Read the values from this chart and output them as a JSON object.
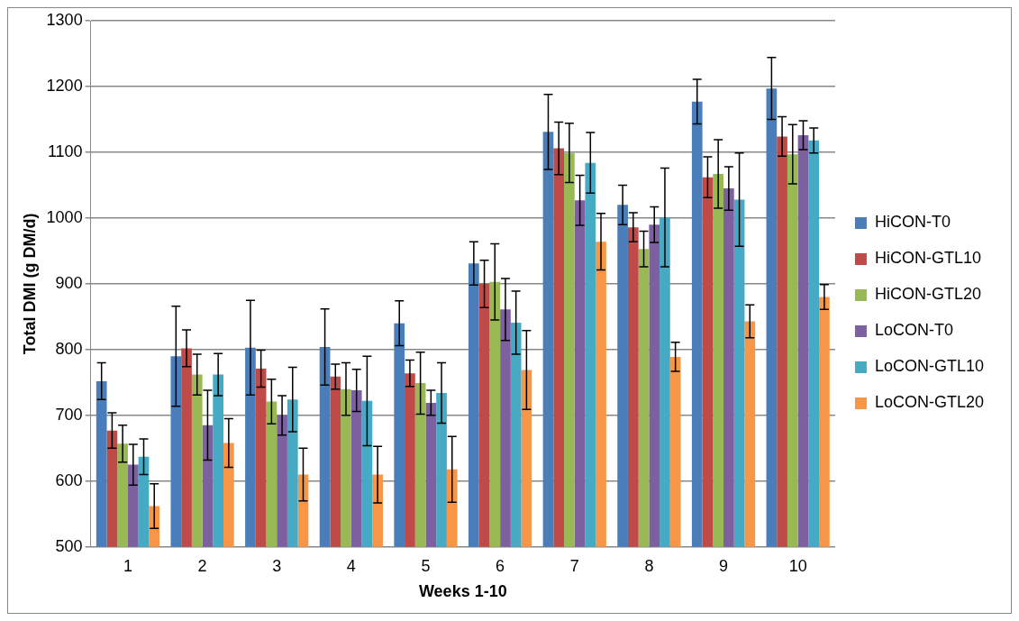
{
  "chart_data": {
    "type": "bar",
    "xlabel": "Weeks 1-10",
    "ylabel": "Total DMI (g DM/d)",
    "categories": [
      "1",
      "2",
      "3",
      "4",
      "5",
      "6",
      "7",
      "8",
      "9",
      "10"
    ],
    "ylim": [
      500,
      1300
    ],
    "yticks": [
      500,
      600,
      700,
      800,
      900,
      1000,
      1100,
      1200,
      1300
    ],
    "grid": "y",
    "legend": "right",
    "series": [
      {
        "name": "HiCON-T0",
        "color": "#4a7ebb",
        "values": [
          752,
          790,
          803,
          804,
          840,
          931,
          1131,
          1020,
          1177,
          1197
        ],
        "errors": [
          28,
          76,
          72,
          58,
          34,
          33,
          57,
          30,
          34,
          47
        ]
      },
      {
        "name": "HiCON-GTL10",
        "color": "#be4b48",
        "values": [
          677,
          802,
          771,
          759,
          764,
          900,
          1106,
          986,
          1062,
          1124
        ],
        "errors": [
          27,
          28,
          28,
          19,
          20,
          36,
          40,
          22,
          31,
          30
        ]
      },
      {
        "name": "HiCON-GTL20",
        "color": "#98b954",
        "values": [
          657,
          762,
          721,
          740,
          749,
          903,
          1099,
          953,
          1067,
          1097
        ],
        "errors": [
          28,
          31,
          34,
          40,
          47,
          58,
          45,
          27,
          52,
          45
        ]
      },
      {
        "name": "LoCON-T0",
        "color": "#7d60a0",
        "values": [
          625,
          685,
          700,
          738,
          719,
          861,
          1027,
          990,
          1045,
          1126
        ],
        "errors": [
          31,
          53,
          30,
          32,
          19,
          47,
          38,
          27,
          33,
          22
        ]
      },
      {
        "name": "LoCON-GTL10",
        "color": "#46aac5",
        "values": [
          637,
          762,
          724,
          722,
          734,
          841,
          1084,
          1001,
          1028,
          1118
        ],
        "errors": [
          27,
          32,
          49,
          68,
          46,
          48,
          46,
          75,
          71,
          19
        ]
      },
      {
        "name": "LoCON-GTL20",
        "color": "#f79646",
        "values": [
          562,
          658,
          610,
          610,
          618,
          769,
          964,
          789,
          843,
          880
        ],
        "errors": [
          34,
          37,
          40,
          43,
          50,
          60,
          43,
          22,
          25,
          19
        ]
      }
    ]
  }
}
